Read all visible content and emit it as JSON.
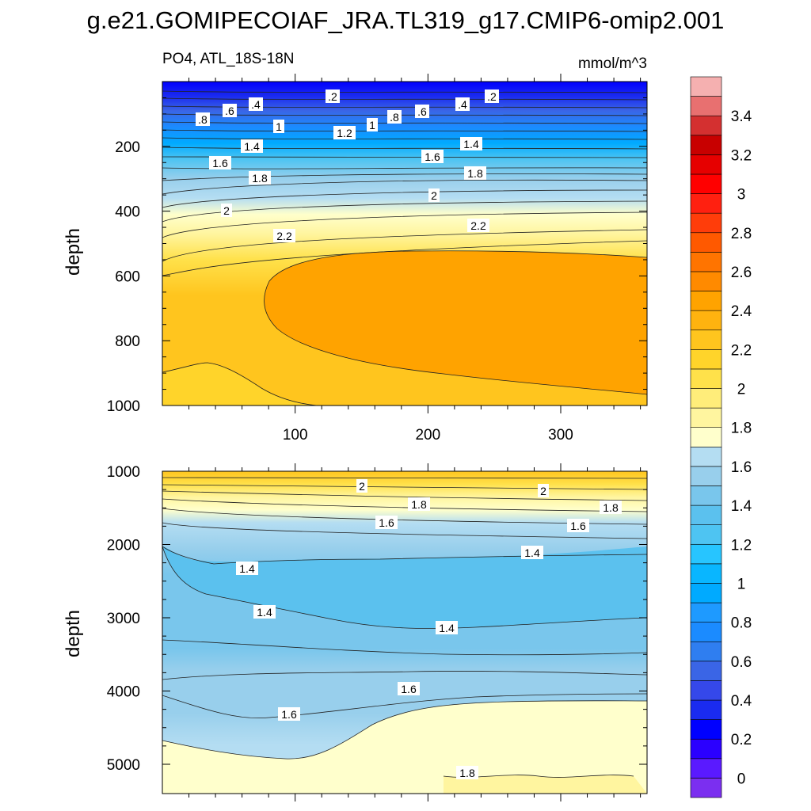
{
  "figure": {
    "title": "g.e21.GOMIPECOIAF_JRA.TL319_g17.CMIP6-omip2.001",
    "variable_label": "PO4, ATL_18S-18N",
    "units": "mmol/m^3"
  },
  "chart_data": [
    {
      "type": "contour",
      "panel": "upper",
      "variable": "PO4",
      "region": "ATL_18S-18N",
      "units": "mmol/m^3",
      "ylabel": "depth",
      "xlabel": "",
      "xlim": [
        0,
        365
      ],
      "ylim": [
        1000,
        0
      ],
      "y_reversed": true,
      "x_ticks": [
        100,
        200,
        300
      ],
      "y_ticks": [
        200,
        400,
        600,
        800,
        1000
      ],
      "contour_labels": [
        ".2",
        ".4",
        ".6",
        ".8",
        "1",
        "1.2",
        "1.4",
        "1.6",
        "1.8",
        "2",
        "2.2"
      ],
      "depth_profile": [
        {
          "depth": 10,
          "value": 0.1
        },
        {
          "depth": 40,
          "value": 0.3
        },
        {
          "depth": 80,
          "value": 0.6
        },
        {
          "depth": 120,
          "value": 0.9
        },
        {
          "depth": 160,
          "value": 1.2
        },
        {
          "depth": 200,
          "value": 1.45
        },
        {
          "depth": 250,
          "value": 1.65
        },
        {
          "depth": 300,
          "value": 1.85
        },
        {
          "depth": 400,
          "value": 2.05
        },
        {
          "depth": 500,
          "value": 2.2
        },
        {
          "depth": 700,
          "value": 2.35
        },
        {
          "depth": 1000,
          "value": 2.2
        }
      ],
      "core_max": {
        "value": 2.35,
        "depth_range": [
          560,
          960
        ],
        "x_range": [
          75,
          365
        ]
      }
    },
    {
      "type": "contour",
      "panel": "lower",
      "variable": "PO4",
      "units": "mmol/m^3",
      "ylabel": "depth",
      "xlabel": "",
      "xlim": [
        0,
        365
      ],
      "ylim": [
        5400,
        1000
      ],
      "y_reversed": true,
      "y_ticks": [
        1000,
        2000,
        3000,
        4000,
        5000
      ],
      "contour_labels": [
        "2",
        "1.8",
        "1.6",
        "1.4"
      ],
      "depth_profile": [
        {
          "depth": 1000,
          "value": 2.15
        },
        {
          "depth": 1200,
          "value": 1.95
        },
        {
          "depth": 1500,
          "value": 1.7
        },
        {
          "depth": 2000,
          "value": 1.5
        },
        {
          "depth": 2500,
          "value": 1.38
        },
        {
          "depth": 3200,
          "value": 1.42
        },
        {
          "depth": 4000,
          "value": 1.55
        },
        {
          "depth": 4600,
          "value": 1.65
        },
        {
          "depth": 5200,
          "value": 1.75
        }
      ]
    },
    {
      "type": "colorbar",
      "levels": [
        -0.1,
        0,
        0.1,
        0.2,
        0.3,
        0.4,
        0.5,
        0.6,
        0.7,
        0.8,
        0.9,
        1.0,
        1.1,
        1.2,
        1.3,
        1.4,
        1.5,
        1.6,
        1.7,
        1.8,
        1.9,
        2.0,
        2.1,
        2.2,
        2.3,
        2.4,
        2.5,
        2.6,
        2.7,
        2.8,
        2.9,
        3.0,
        3.1,
        3.2,
        3.3,
        3.4,
        3.5,
        3.6
      ],
      "colors": [
        "#7b2ff0",
        "#5a1aff",
        "#2b00ff",
        "#0000ff",
        "#1a2bf0",
        "#3548ea",
        "#3a65e6",
        "#2f7ef0",
        "#1b8bff",
        "#1e9aff",
        "#00aaff",
        "#09b6ff",
        "#27c5ff",
        "#4ec4f2",
        "#5bc1ee",
        "#79c6ec",
        "#98cfec",
        "#b4ddf2",
        "#ffffcc",
        "#fff59f",
        "#ffed7a",
        "#ffe14a",
        "#ffd42a",
        "#ffc51e",
        "#ffb30f",
        "#ffa300",
        "#ff8a00",
        "#ff7400",
        "#ff5900",
        "#ff3d0a",
        "#ff2010",
        "#ff0000",
        "#e60000",
        "#c80000",
        "#d43030",
        "#e87070",
        "#f5b0b0"
      ],
      "tick_labels": [
        "0",
        "0.2",
        "0.4",
        "0.6",
        "0.8",
        "1",
        "1.2",
        "1.4",
        "1.6",
        "1.8",
        "2",
        "2.2",
        "2.4",
        "2.6",
        "2.8",
        "3",
        "3.2",
        "3.4"
      ]
    }
  ]
}
